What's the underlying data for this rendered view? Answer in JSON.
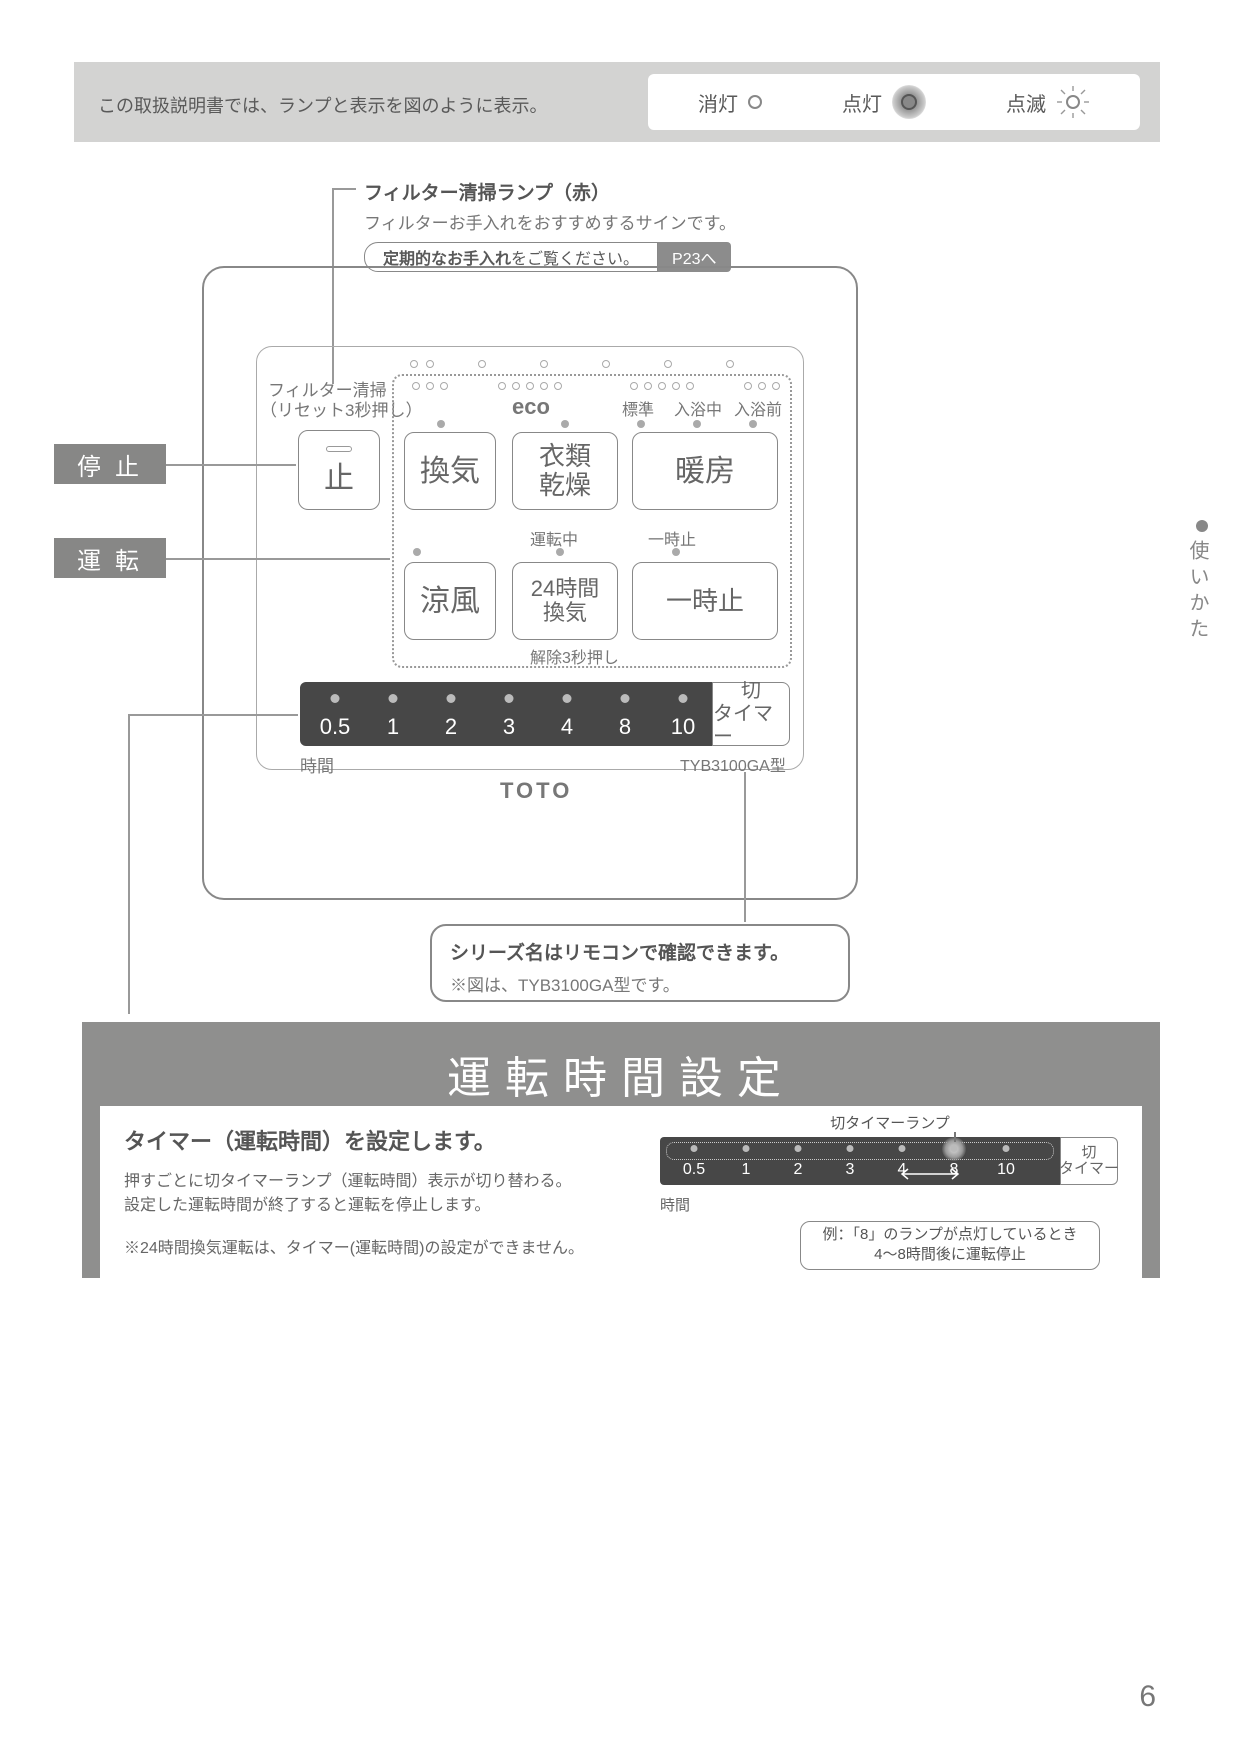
{
  "legend": {
    "text": "この取扱説明書では、ランプと表示を図のように表示。",
    "off": "消灯",
    "on": "点灯",
    "blink": "点滅"
  },
  "filter_callout": {
    "title": "フィルター清掃ランプ（赤）",
    "desc": "フィルターお手入れをおすすめするサインです。",
    "ref_left_bold": "定期的なお手入れ",
    "ref_left_tail": "をご覧ください。",
    "ref_right": "P23へ"
  },
  "side_tab": "使いかた",
  "side_labels": {
    "stop": "停止",
    "run": "運転"
  },
  "panel": {
    "filter_label1": "フィルター清掃",
    "filter_label2": "（リセット3秒押し）",
    "eco": "eco",
    "std": "標準",
    "bathing": "入浴中",
    "prebath": "入浴前",
    "running": "運転中",
    "pause_lbl": "一時止",
    "release": "解除3秒押し",
    "time_label": "時間",
    "model": "TYB3100GA型",
    "brand": "TOTO",
    "buttons": {
      "stop": "止",
      "vent": "換気",
      "dry1": "衣類",
      "dry2": "乾燥",
      "heat": "暖房",
      "cool": "涼風",
      "vent24a": "24時間",
      "vent24b": "換気",
      "pause": "一時止"
    },
    "timer_values": [
      "0.5",
      "1",
      "2",
      "3",
      "4",
      "8",
      "10"
    ],
    "timer_btn1": "切",
    "timer_btn2": "タイマー"
  },
  "series_note": {
    "l1": "シリーズ名はリモコンで確認できます。",
    "l2": "※図は、TYB3100GA型です。"
  },
  "section": {
    "title": "運転時間設定",
    "heading": "タイマー（運転時間）を設定します。",
    "p1": "押すごとに切タイマーランプ（運転時間）表示が切り替わる。",
    "p2": "設定した運転時間が終了すると運転を停止します。",
    "note": "※24時間換気運転は、タイマー(運転時間)の設定ができません。",
    "right_caption": "切タイマーランプ",
    "mini_values": [
      "0.5",
      "1",
      "2",
      "3",
      "4",
      "8",
      "10"
    ],
    "mini_btn1": "切",
    "mini_btn2": "タイマー",
    "mini_time": "時間",
    "example_l1": "例：「8」のランプが点灯しているとき",
    "example_l2": "4〜8時間後に運転停止"
  },
  "page_number": "6",
  "colors": {
    "grey_box": "#d3d3d2",
    "mid_grey": "#878786",
    "dark_bar": "#474747",
    "text": "#595959",
    "line": "#999999"
  },
  "layout": {
    "timer_x": [
      335,
      393,
      451,
      509,
      567,
      625,
      683
    ],
    "mini_x": [
      34,
      86,
      138,
      190,
      242,
      294,
      346
    ]
  }
}
